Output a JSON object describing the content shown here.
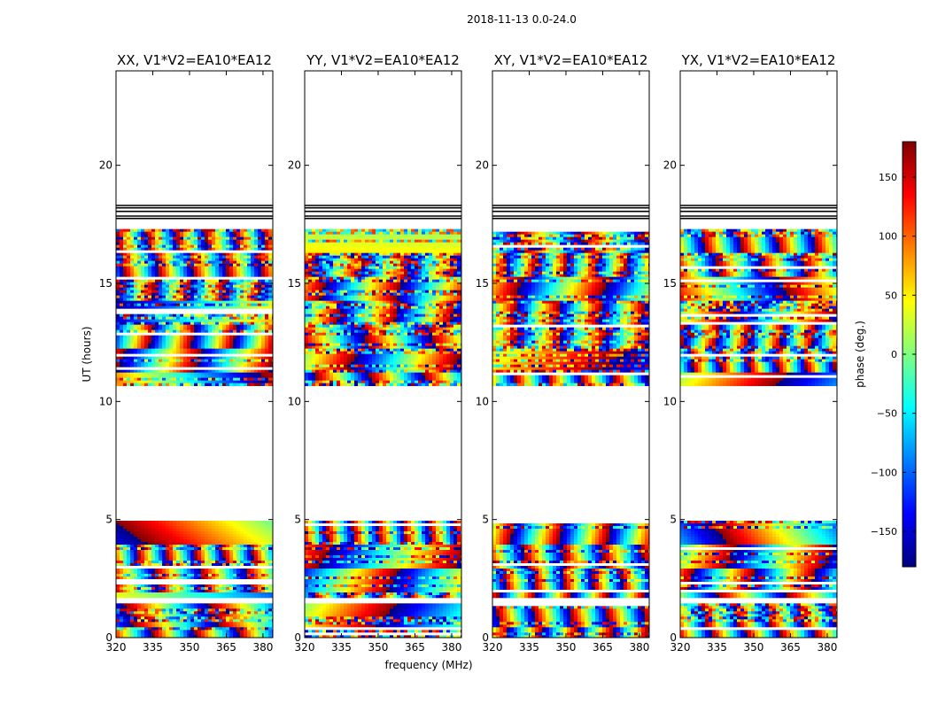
{
  "figure": {
    "suptitle": "2018-11-13 0.0-24.0",
    "xlabel": "frequency (MHz)",
    "ylabel": "UT (hours)"
  },
  "chart_data": {
    "type": "heatmap",
    "panels": [
      {
        "title": "XX, V1*V2=EA10*EA12",
        "seed": 11
      },
      {
        "title": "YY, V1*V2=EA10*EA12",
        "seed": 23
      },
      {
        "title": "XY, V1*V2=EA10*EA12",
        "seed": 37
      },
      {
        "title": "YX, V1*V2=EA10*EA12",
        "seed": 53
      }
    ],
    "xlim": [
      320,
      384
    ],
    "xticks": [
      320,
      335,
      350,
      365,
      380
    ],
    "ylim": [
      0,
      24
    ],
    "yticks": [
      0,
      5,
      10,
      15,
      20
    ],
    "data_bands_hours": [
      [
        0,
        1.45
      ],
      [
        1.75,
        4.95
      ],
      [
        10.7,
        17.3
      ]
    ],
    "flagged_lines_hours": [
      17.75,
      17.85,
      18.05,
      18.2,
      18.3
    ],
    "colorbar": {
      "label": "phase (deg.)",
      "range": [
        -180,
        180
      ],
      "ticks": [
        -150,
        -100,
        -50,
        0,
        50,
        100,
        150
      ],
      "tick_labels": [
        "−150",
        "−100",
        "−50",
        "0",
        "50",
        "100",
        "150"
      ],
      "colormap": "jet",
      "colors": [
        "#00007f",
        "#0000ff",
        "#007fff",
        "#00ffff",
        "#7fff7f",
        "#ffff00",
        "#ff7f00",
        "#ff0000",
        "#7f0000"
      ]
    }
  }
}
